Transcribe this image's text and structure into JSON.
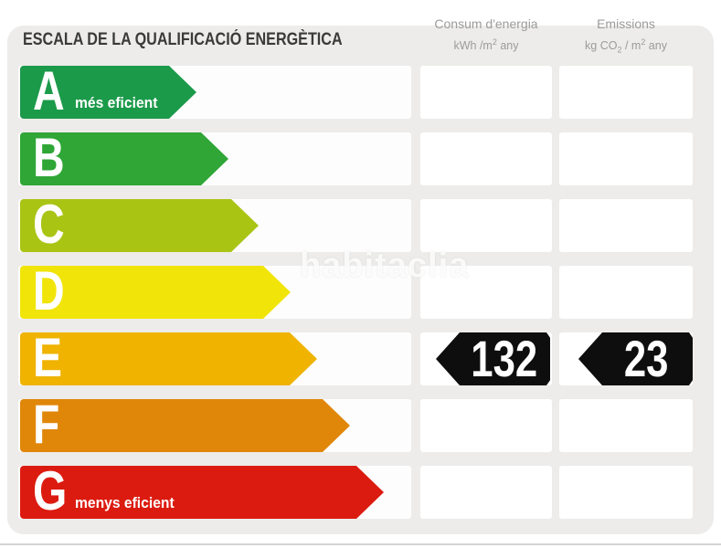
{
  "title": "ESCALA DE LA QUALIFICACIÓ ENERGÈTICA",
  "watermark": "habitaclia",
  "columns": [
    {
      "name": "Consum d'energia",
      "unit_pre": "kWh /m",
      "unit_sup": "2",
      "unit_post": " any"
    },
    {
      "name": "Emissions",
      "unit_pre": "kg CO",
      "unit_sub": "2",
      "unit_mid": " / m",
      "unit_sup2": "2",
      "unit_post": " any"
    }
  ],
  "ratings": [
    {
      "letter": "A",
      "sublabel": "més eficient",
      "color": "#1b9a4a",
      "length": 193
    },
    {
      "letter": "B",
      "sublabel": "",
      "color": "#2fa636",
      "length": 228
    },
    {
      "letter": "C",
      "sublabel": "",
      "color": "#aac414",
      "length": 261
    },
    {
      "letter": "D",
      "sublabel": "",
      "color": "#f1e409",
      "length": 296
    },
    {
      "letter": "E",
      "sublabel": "",
      "color": "#efb300",
      "length": 325
    },
    {
      "letter": "F",
      "sublabel": "",
      "color": "#e08709",
      "length": 361
    },
    {
      "letter": "G",
      "sublabel": "menys eficient",
      "color": "#dc1b10",
      "length": 398
    }
  ],
  "result": {
    "rating": "E",
    "consum_energia": "132",
    "emissions": "23"
  },
  "chart_data": {
    "type": "bar",
    "title": "ESCALA DE LA QUALIFICACIÓ ENERGÈTICA",
    "categories": [
      "A",
      "B",
      "C",
      "D",
      "E",
      "F",
      "G"
    ],
    "values": [
      193,
      228,
      261,
      296,
      325,
      361,
      398
    ],
    "value_note": "decorative arrow lengths in px, A=most efficient to G=least efficient",
    "colors": [
      "#1b9a4a",
      "#2fa636",
      "#aac414",
      "#f1e409",
      "#efb300",
      "#e08709",
      "#dc1b10"
    ],
    "assigned_rating": "E",
    "consum_energia_kwh_m2_any": 132,
    "emissions_kg_co2_m2_any": 23,
    "column_headers": [
      "Consum d'energia kWh/m² any",
      "Emissions kg CO₂/m² any"
    ],
    "annotations": {
      "A": "més eficient",
      "G": "menys eficient"
    }
  }
}
